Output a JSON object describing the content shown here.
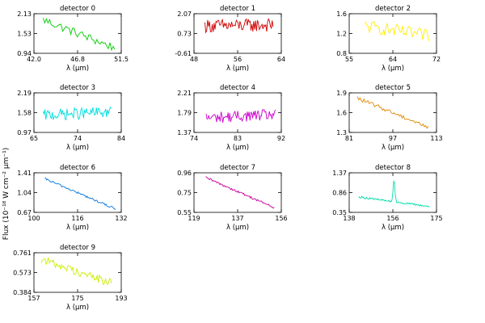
{
  "figure": {
    "ylabel": "Flux (10⁻¹⁸ W cm⁻² μm⁻¹)",
    "xlabel": "λ (μm)"
  },
  "chart_data": [
    {
      "type": "line",
      "title": "detector 0",
      "color": "#00cc00",
      "xlim": [
        42.0,
        51.5
      ],
      "ylim": [
        0.94,
        2.13
      ],
      "xticks": [
        "42.0",
        "46.8",
        "51.5"
      ],
      "yticks": [
        "0.94",
        "1.53",
        "2.13"
      ],
      "xrange": [
        43.0,
        50.8
      ],
      "trend": [
        1.95,
        1.1
      ],
      "noise": 0.13,
      "n": 45
    },
    {
      "type": "line",
      "title": "detector 1",
      "color": "#cc0000",
      "xlim": [
        48,
        64
      ],
      "ylim": [
        -0.61,
        2.07
      ],
      "xticks": [
        "48",
        "56",
        "64"
      ],
      "yticks": [
        "-0.61",
        "0.73",
        "2.07"
      ],
      "xrange": [
        50.0,
        62.5
      ],
      "trend": [
        1.25,
        1.3
      ],
      "noise": 0.45,
      "n": 75
    },
    {
      "type": "line",
      "title": "detector 2",
      "color": "#ffee00",
      "xlim": [
        55,
        72
      ],
      "ylim": [
        0.8,
        1.6
      ],
      "xticks": [
        "55",
        "64",
        "72"
      ],
      "yticks": [
        "0.8",
        "1.2",
        "1.6"
      ],
      "xrange": [
        58.0,
        70.5
      ],
      "trend": [
        1.35,
        1.15
      ],
      "noise": 0.13,
      "n": 55
    },
    {
      "type": "line",
      "title": "detector 3",
      "color": "#00dddd",
      "xlim": [
        65,
        84
      ],
      "ylim": [
        0.97,
        2.19
      ],
      "xticks": [
        "65",
        "74",
        "84"
      ],
      "yticks": [
        "0.97",
        "1.58",
        "2.19"
      ],
      "xrange": [
        67.0,
        81.8
      ],
      "trend": [
        1.5,
        1.6
      ],
      "noise": 0.18,
      "n": 75
    },
    {
      "type": "line",
      "title": "detector 4",
      "color": "#cc00cc",
      "xlim": [
        74,
        92
      ],
      "ylim": [
        1.37,
        2.21
      ],
      "xticks": [
        "74",
        "83",
        "92"
      ],
      "yticks": [
        "1.37",
        "1.79",
        "2.21"
      ],
      "xrange": [
        76.5,
        90.8
      ],
      "trend": [
        1.68,
        1.75
      ],
      "noise": 0.12,
      "n": 80
    },
    {
      "type": "line",
      "title": "detector 5",
      "color": "#dd8800",
      "xlim": [
        81,
        113
      ],
      "ylim": [
        1.3,
        1.9
      ],
      "xticks": [
        "81",
        "97",
        "113"
      ],
      "yticks": [
        "1.3",
        "1.6",
        "1.9"
      ],
      "xrange": [
        84.0,
        110.0
      ],
      "trend": [
        1.82,
        1.38
      ],
      "noise": 0.03,
      "n": 55
    },
    {
      "type": "line",
      "title": "detector 6",
      "color": "#0077dd",
      "xlim": [
        100,
        132
      ],
      "ylim": [
        0.67,
        1.41
      ],
      "xticks": [
        "100",
        "116",
        "132"
      ],
      "yticks": [
        "0.67",
        "1.04",
        "1.41"
      ],
      "xrange": [
        104.0,
        130.0
      ],
      "trend": [
        1.3,
        0.73
      ],
      "noise": 0.02,
      "n": 80
    },
    {
      "type": "line",
      "title": "detector 7",
      "color": "#cc0099",
      "xlim": [
        119,
        156
      ],
      "ylim": [
        0.55,
        0.96
      ],
      "xticks": [
        "119",
        "137",
        "156"
      ],
      "yticks": [
        "0.55",
        "0.75",
        "0.96"
      ],
      "xrange": [
        124.0,
        153.0
      ],
      "trend": [
        0.91,
        0.6
      ],
      "noise": 0.012,
      "n": 75
    },
    {
      "type": "line",
      "title": "detector 8",
      "color": "#00ddaa",
      "xlim": [
        138,
        175
      ],
      "ylim": [
        0.35,
        1.37
      ],
      "xticks": [
        "138",
        "156",
        "175"
      ],
      "yticks": [
        "0.35",
        "0.86",
        "1.37"
      ],
      "xrange": [
        142.0,
        172.0
      ],
      "trend": [
        0.75,
        0.5
      ],
      "noise": 0.025,
      "n": 90,
      "peak": {
        "x": 157.0,
        "height": 0.55,
        "width": 0.55
      }
    },
    {
      "type": "line",
      "title": "detector 9",
      "color": "#ccee00",
      "xlim": [
        157,
        193
      ],
      "ylim": [
        0.384,
        0.761
      ],
      "xticks": [
        "157",
        "175",
        "193"
      ],
      "yticks": [
        "0.384",
        "0.573",
        "0.761"
      ],
      "xrange": [
        160.0,
        189.0
      ],
      "trend": [
        0.7,
        0.47
      ],
      "noise": 0.04,
      "n": 70
    }
  ]
}
